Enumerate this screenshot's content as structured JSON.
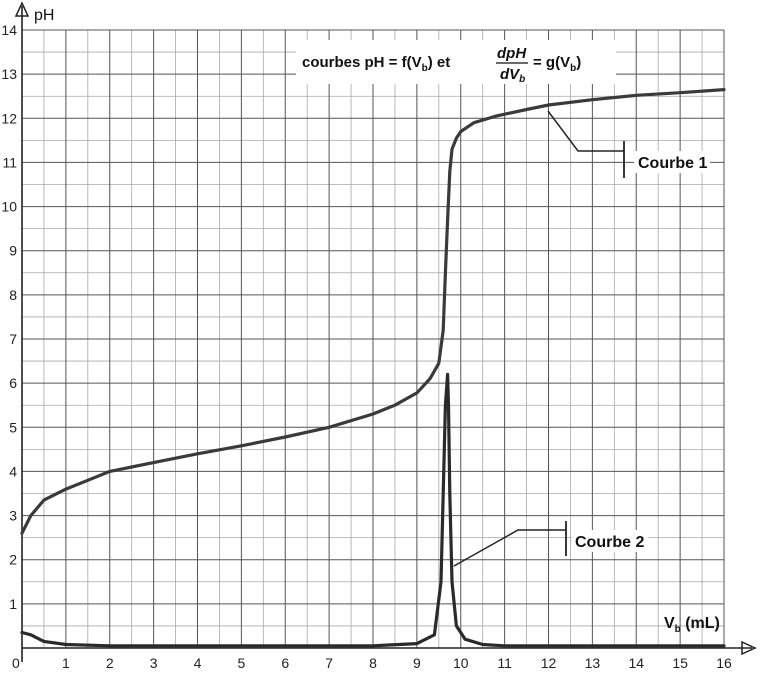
{
  "chart_data": {
    "type": "line",
    "title_parts": {
      "prefix": "courbes pH = f(V",
      "sub1": "b",
      "mid": ") et",
      "frac_num": "dpH",
      "frac_den_main": "dV",
      "frac_den_sub": "b",
      "suffix_pre": "= g(V",
      "sub2": "b",
      "suffix_post": ")"
    },
    "ylabel": "pH",
    "xlabel_parts": {
      "main": "V",
      "sub": "b",
      "rest": " (mL)"
    },
    "xlim": [
      0,
      16
    ],
    "ylim": [
      0,
      14
    ],
    "grid": true,
    "x_ticks": [
      "0",
      "1",
      "2",
      "3",
      "4",
      "5",
      "6",
      "7",
      "8",
      "9",
      "10",
      "11",
      "12",
      "13",
      "14",
      "15",
      "16"
    ],
    "y_ticks": [
      "1",
      "2",
      "3",
      "4",
      "5",
      "6",
      "7",
      "8",
      "9",
      "10",
      "11",
      "12",
      "13",
      "14"
    ],
    "series": [
      {
        "name": "Courbe 1",
        "x": [
          0,
          0.2,
          0.5,
          1,
          1.5,
          2,
          3,
          4,
          5,
          6,
          7,
          8,
          8.5,
          9,
          9.3,
          9.5,
          9.6,
          9.65,
          9.7,
          9.75,
          9.8,
          9.9,
          10,
          10.3,
          10.8,
          11.5,
          12,
          13,
          14,
          15,
          16
        ],
        "y": [
          2.6,
          3.0,
          3.35,
          3.6,
          3.8,
          4.0,
          4.2,
          4.4,
          4.58,
          4.78,
          5.0,
          5.3,
          5.5,
          5.78,
          6.1,
          6.45,
          7.2,
          8.5,
          9.7,
          10.8,
          11.3,
          11.55,
          11.7,
          11.9,
          12.05,
          12.2,
          12.3,
          12.42,
          12.52,
          12.58,
          12.65
        ]
      },
      {
        "name": "Courbe 2",
        "x": [
          0,
          0.2,
          0.5,
          1,
          2,
          4,
          6,
          8,
          9,
          9.4,
          9.55,
          9.6,
          9.65,
          9.7,
          9.72,
          9.75,
          9.8,
          9.9,
          10.1,
          10.5,
          11,
          12,
          14,
          16
        ],
        "y": [
          0.35,
          0.3,
          0.15,
          0.08,
          0.05,
          0.05,
          0.05,
          0.05,
          0.1,
          0.3,
          1.5,
          3.5,
          5.5,
          6.2,
          5.5,
          3.5,
          1.5,
          0.5,
          0.2,
          0.08,
          0.05,
          0.05,
          0.05,
          0.05
        ]
      }
    ],
    "annotations": [
      {
        "text": "Courbe 1",
        "points_to": [
          12,
          12.3
        ]
      },
      {
        "text": "Courbe 2",
        "points_to": [
          9.8,
          1.9
        ]
      }
    ]
  }
}
